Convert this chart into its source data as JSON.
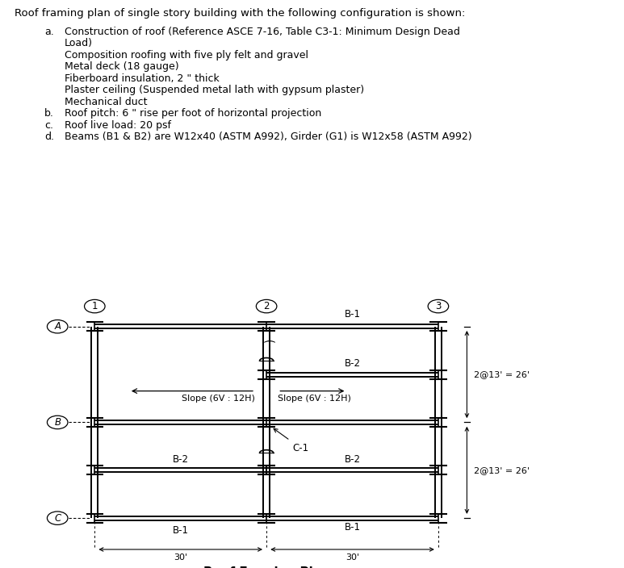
{
  "title_text": "Roof framing plan of single story building with the following configuration is shown:",
  "bullet_a_label": "a.",
  "bullet_a_line1": "Construction of roof (Reference ASCE 7-16, Table C3-1: Minimum Design Dead",
  "bullet_a_line1b": "Load)",
  "bullet_a_sub": [
    "Composition roofing with five ply felt and gravel",
    "Metal deck (18 gauge)",
    "Fiberboard insulation, 2 \" thick",
    "Plaster ceiling (Suspended metal lath with gypsum plaster)",
    "Mechanical duct"
  ],
  "bullet_b_label": "b.",
  "bullet_b_text": "Roof pitch: 6 \" rise per foot of horizontal projection",
  "bullet_c_label": "c.",
  "bullet_c_text": "Roof live load: 20 psf",
  "bullet_d_label": "d.",
  "bullet_d_text": "Beams (B1 & B2) are W12x40 (ASTM A992), Girder (G1) is W12x58 (ASTM A992)",
  "col_labels": [
    "1",
    "2",
    "3"
  ],
  "row_labels": [
    "A",
    "B",
    "C"
  ],
  "row_dim_text_upper": "2@13' = 26'",
  "row_dim_text_lower": "2@13' = 26'",
  "col_dim_text": [
    "30'",
    "30'"
  ],
  "slope_text_left": "Slope (6V : 12H)",
  "slope_text_right": "Slope (6V : 12H)",
  "column_label": "C-1",
  "diagram_title": "Roof Framing Plan",
  "bg_color": "#ffffff",
  "line_color": "#000000",
  "font_size_title": 9.5,
  "font_size_body": 9,
  "font_size_diagram": 8.5,
  "font_size_diagram_title": 11
}
